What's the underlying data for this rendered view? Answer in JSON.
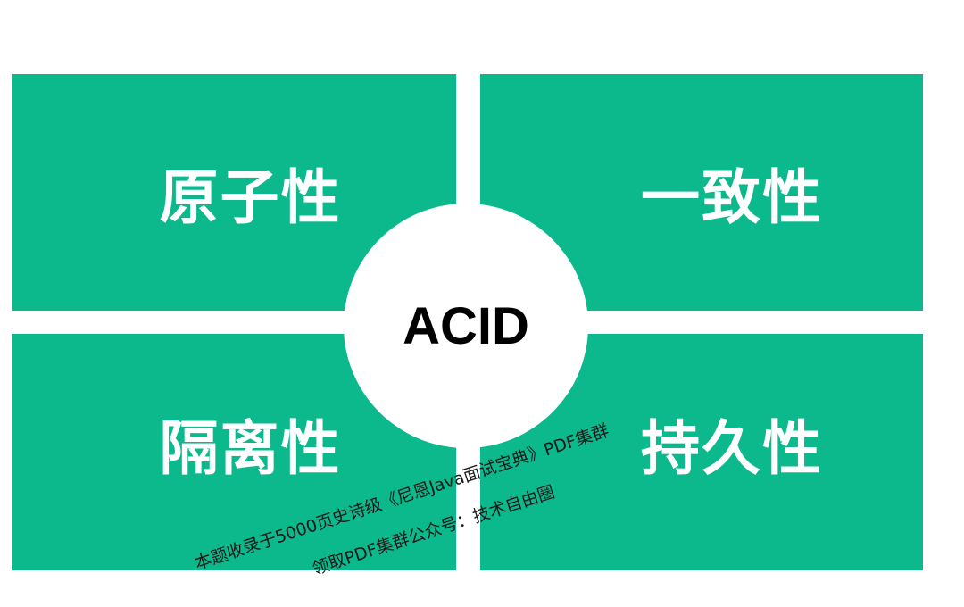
{
  "diagram": {
    "center_label": "ACID",
    "quadrants": {
      "top_left": "原子性",
      "top_right": "一致性",
      "bottom_left": "隔离性",
      "bottom_right": "持久性"
    },
    "colors": {
      "quadrant_fill": "#0bb98c",
      "quadrant_text": "#ffffff",
      "center_fill": "#ffffff",
      "center_text": "#000000",
      "background": "#ffffff"
    }
  },
  "watermark": {
    "line1": "本题收录于5000页史诗级《尼恩Java面试宝典》PDF集群",
    "line2": "领取PDF集群公众号：技术自由圈"
  }
}
